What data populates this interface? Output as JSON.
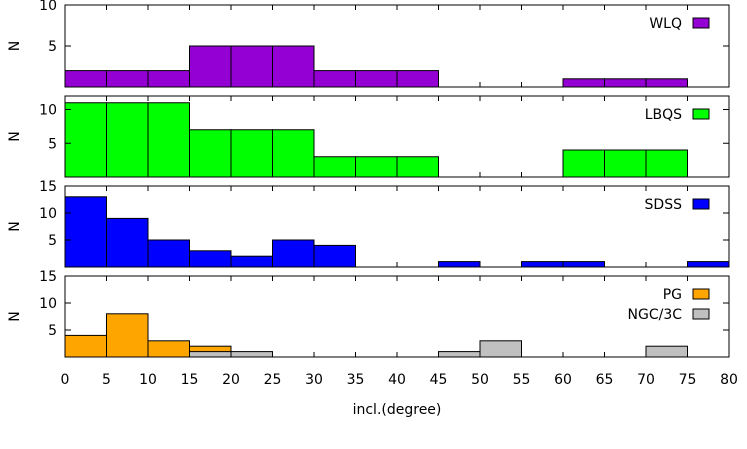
{
  "chart_data": [
    {
      "type": "bar",
      "ylabel": "N",
      "ylim": [
        0,
        10
      ],
      "yticks": [
        5,
        10
      ],
      "series": [
        {
          "name": "WLQ",
          "color": "#9400d3",
          "bins": [
            [
              0,
              2
            ],
            [
              5,
              2
            ],
            [
              10,
              2
            ],
            [
              15,
              5
            ],
            [
              20,
              5
            ],
            [
              25,
              5
            ],
            [
              30,
              2
            ],
            [
              35,
              2
            ],
            [
              40,
              2
            ],
            [
              60,
              1
            ],
            [
              65,
              1
            ],
            [
              70,
              1
            ]
          ]
        }
      ]
    },
    {
      "type": "bar",
      "ylabel": "N",
      "ylim": [
        0,
        12
      ],
      "yticks": [
        5,
        10
      ],
      "series": [
        {
          "name": "LBQS",
          "color": "#00ff00",
          "bins": [
            [
              0,
              11
            ],
            [
              5,
              11
            ],
            [
              10,
              11
            ],
            [
              15,
              7
            ],
            [
              20,
              7
            ],
            [
              25,
              7
            ],
            [
              30,
              3
            ],
            [
              35,
              3
            ],
            [
              40,
              3
            ],
            [
              60,
              4
            ],
            [
              65,
              4
            ],
            [
              70,
              4
            ]
          ]
        }
      ]
    },
    {
      "type": "bar",
      "ylabel": "N",
      "ylim": [
        0,
        15
      ],
      "yticks": [
        5,
        10,
        15
      ],
      "series": [
        {
          "name": "SDSS",
          "color": "#0000ff",
          "bins": [
            [
              0,
              13
            ],
            [
              5,
              9
            ],
            [
              10,
              5
            ],
            [
              15,
              3
            ],
            [
              20,
              2
            ],
            [
              25,
              5
            ],
            [
              30,
              4
            ],
            [
              45,
              1
            ],
            [
              55,
              1
            ],
            [
              60,
              1
            ],
            [
              75,
              1
            ]
          ]
        }
      ]
    },
    {
      "type": "bar",
      "ylabel": "N",
      "ylim": [
        0,
        15
      ],
      "yticks": [
        5,
        10,
        15
      ],
      "xlabel": "incl.(degree)",
      "xlim": [
        0,
        80
      ],
      "xticks": [
        0,
        5,
        10,
        15,
        20,
        25,
        30,
        35,
        40,
        45,
        50,
        55,
        60,
        65,
        70,
        75,
        80
      ],
      "series": [
        {
          "name": "PG",
          "color": "#ffa500",
          "bins": [
            [
              0,
              4
            ],
            [
              5,
              8
            ],
            [
              10,
              3
            ],
            [
              15,
              2
            ]
          ]
        },
        {
          "name": "NGC/3C",
          "color": "#c0c0c0",
          "bins": [
            [
              15,
              1
            ],
            [
              20,
              1
            ],
            [
              45,
              1
            ],
            [
              50,
              3
            ],
            [
              70,
              2
            ]
          ]
        }
      ]
    }
  ],
  "bin_width": 5,
  "axis_xlim": [
    0,
    80
  ]
}
